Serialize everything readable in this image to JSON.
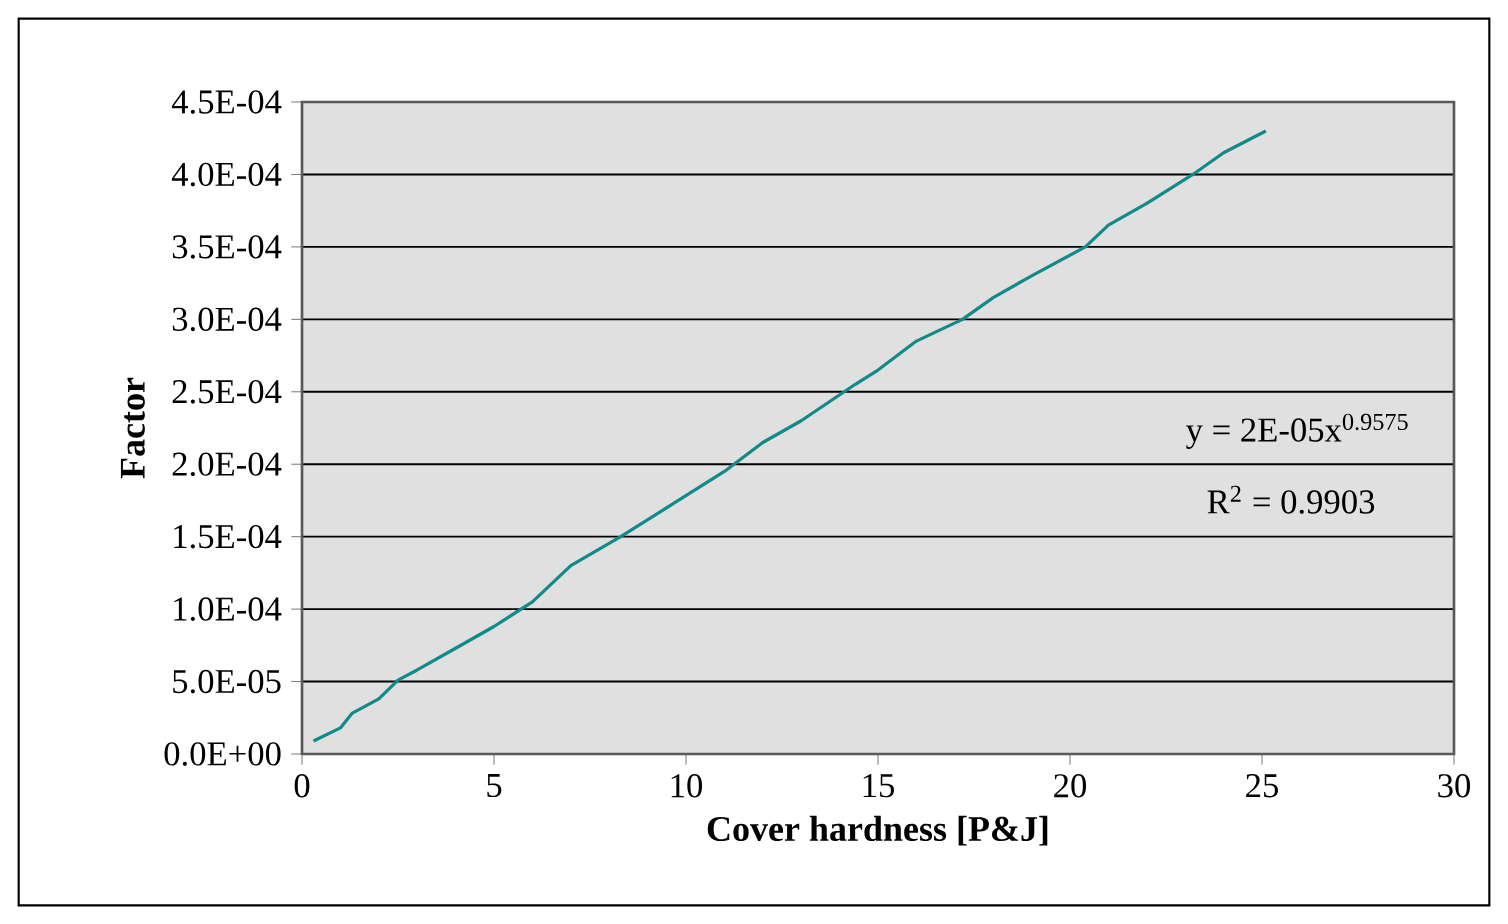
{
  "chart_data": {
    "type": "line",
    "xlabel": "Cover hardness [P&J]",
    "ylabel": "Factor",
    "x": [
      0.3,
      1.0,
      1.3,
      2.0,
      2.5,
      3.0,
      4.0,
      5.0,
      6.0,
      7.0,
      8.3,
      9.8,
      11.0,
      12.0,
      13.0,
      14.4,
      15.0,
      16.0,
      17.2,
      18.0,
      19.0,
      20.4,
      21.0,
      22.0,
      23.2,
      24.0,
      25.1
    ],
    "series": [
      {
        "color": "#138a8a",
        "values": [
          9e-06,
          1.8e-05,
          2.8e-05,
          3.8e-05,
          5.1e-05,
          5.8e-05,
          7.3e-05,
          8.8e-05,
          0.000105,
          0.00013,
          0.00015,
          0.000175,
          0.000195,
          0.000215,
          0.00023,
          0.000255,
          0.000265,
          0.000285,
          0.0003,
          0.000315,
          0.00033,
          0.00035,
          0.000365,
          0.00038,
          0.0004,
          0.000415,
          0.00043
        ]
      }
    ],
    "xlim": [
      0,
      30
    ],
    "xticks": [
      0,
      5,
      10,
      15,
      20,
      25,
      30
    ],
    "ylim": [
      0,
      0.00045
    ],
    "yticks": [
      {
        "value": 0,
        "label": "0.0E+00"
      },
      {
        "value": 5e-05,
        "label": "5.0E-05"
      },
      {
        "value": 0.0001,
        "label": "1.0E-04"
      },
      {
        "value": 0.00015,
        "label": "1.5E-04"
      },
      {
        "value": 0.0002,
        "label": "2.0E-04"
      },
      {
        "value": 0.00025,
        "label": "2.5E-04"
      },
      {
        "value": 0.0003,
        "label": "3.0E-04"
      },
      {
        "value": 0.00035,
        "label": "3.5E-04"
      },
      {
        "value": 0.0004,
        "label": "4.0E-04"
      },
      {
        "value": 0.00045,
        "label": "4.5E-04"
      }
    ],
    "grid": "y",
    "marker": "none",
    "line_style": "solid",
    "annotations": [
      "y = 2E-05x$^{0.9575}$",
      "R$^{2}$ = 0.9903"
    ]
  }
}
